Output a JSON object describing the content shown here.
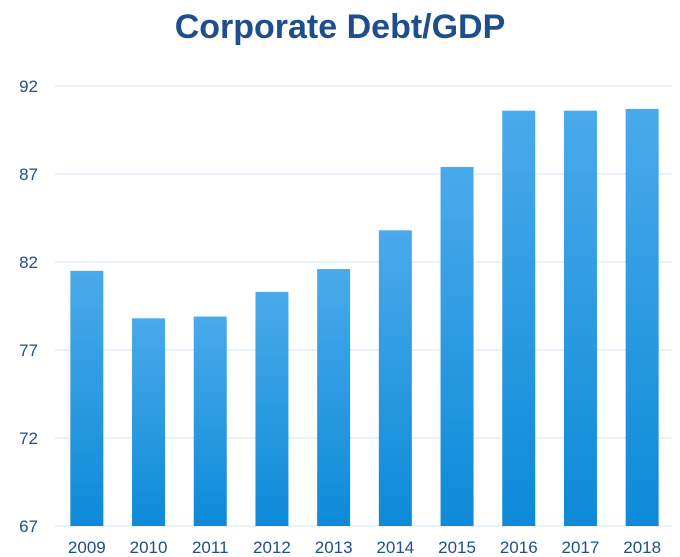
{
  "chart_data": {
    "type": "bar",
    "title": "Corporate Debt/GDP",
    "xlabel": "",
    "ylabel": "",
    "categories": [
      "2009",
      "2010",
      "2011",
      "2012",
      "2013",
      "2014",
      "2015",
      "2016",
      "2017",
      "2018"
    ],
    "values": [
      81.5,
      78.8,
      78.9,
      80.3,
      81.6,
      83.8,
      87.4,
      90.6,
      90.6,
      90.7
    ],
    "ylim": [
      67,
      92
    ],
    "yticks": [
      67,
      72,
      77,
      82,
      87,
      92
    ],
    "grid": true,
    "legend": "none",
    "colors": {
      "bar_top": "#4aaaea",
      "bar_bottom": "#0d8ad8",
      "title": "#1f4e8c",
      "axis_text": "#1f4e8c",
      "grid": "#cfe3f3"
    }
  }
}
